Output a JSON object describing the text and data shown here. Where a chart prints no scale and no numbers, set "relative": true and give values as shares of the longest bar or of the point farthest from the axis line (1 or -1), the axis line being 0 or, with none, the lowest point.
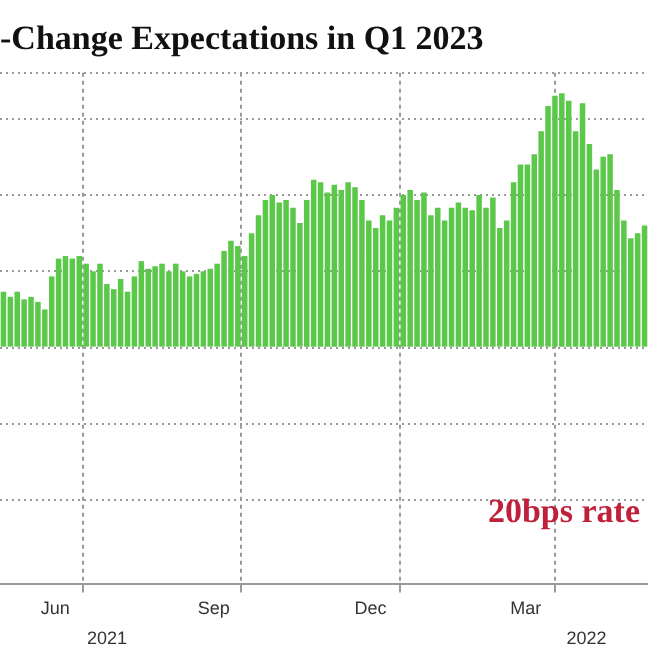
{
  "chart_data": {
    "type": "bar",
    "title": "-Change Expectations in Q1 2023",
    "relative": true,
    "color": "#5cc84a",
    "grid": true,
    "legend": false,
    "x": [
      "2021-05-16",
      "2021-05-20",
      "2021-05-24",
      "2021-05-28",
      "2021-06-01",
      "2021-06-05",
      "2021-06-09",
      "2021-06-13",
      "2021-06-17",
      "2021-06-21",
      "2021-06-25",
      "2021-06-29",
      "2021-07-03",
      "2021-07-07",
      "2021-07-11",
      "2021-07-15",
      "2021-07-19",
      "2021-07-23",
      "2021-07-27",
      "2021-07-31",
      "2021-08-04",
      "2021-08-08",
      "2021-08-12",
      "2021-08-16",
      "2021-08-20",
      "2021-08-24",
      "2021-08-28",
      "2021-09-01",
      "2021-09-05",
      "2021-09-09",
      "2021-09-13",
      "2021-09-17",
      "2021-09-21",
      "2021-09-25",
      "2021-09-29",
      "2021-10-03",
      "2021-10-07",
      "2021-10-11",
      "2021-10-15",
      "2021-10-19",
      "2021-10-23",
      "2021-10-27",
      "2021-10-31",
      "2021-11-04",
      "2021-11-08",
      "2021-11-12",
      "2021-11-16",
      "2021-11-20",
      "2021-11-24",
      "2021-11-28",
      "2021-12-02",
      "2021-12-06",
      "2021-12-10",
      "2021-12-14",
      "2021-12-18",
      "2021-12-22",
      "2021-12-26",
      "2021-12-30",
      "2022-01-03",
      "2022-01-07",
      "2022-01-11",
      "2022-01-15",
      "2022-01-19",
      "2022-01-23",
      "2022-01-27",
      "2022-01-31",
      "2022-02-04",
      "2022-02-08",
      "2022-02-12",
      "2022-02-16",
      "2022-02-20",
      "2022-02-24",
      "2022-02-28",
      "2022-03-04",
      "2022-03-08",
      "2022-03-12",
      "2022-03-16",
      "2022-03-20",
      "2022-03-24",
      "2022-03-28",
      "2022-04-01",
      "2022-04-05",
      "2022-04-09",
      "2022-04-13",
      "2022-04-17",
      "2022-04-21",
      "2022-04-25",
      "2022-04-29",
      "2022-05-03",
      "2022-05-07",
      "2022-05-11",
      "2022-05-15",
      "2022-05-19",
      "2022-05-23"
    ],
    "values": [
      0.22,
      0.2,
      0.22,
      0.19,
      0.2,
      0.18,
      0.15,
      0.28,
      0.35,
      0.36,
      0.35,
      0.36,
      0.33,
      0.3,
      0.33,
      0.25,
      0.23,
      0.27,
      0.22,
      0.28,
      0.34,
      0.31,
      0.32,
      0.33,
      0.3,
      0.33,
      0.3,
      0.28,
      0.29,
      0.3,
      0.31,
      0.33,
      0.38,
      0.42,
      0.4,
      0.36,
      0.45,
      0.52,
      0.58,
      0.6,
      0.57,
      0.58,
      0.55,
      0.49,
      0.58,
      0.66,
      0.65,
      0.61,
      0.64,
      0.62,
      0.65,
      0.63,
      0.58,
      0.5,
      0.47,
      0.52,
      0.5,
      0.55,
      0.6,
      0.62,
      0.58,
      0.61,
      0.52,
      0.55,
      0.5,
      0.55,
      0.57,
      0.55,
      0.54,
      0.6,
      0.55,
      0.59,
      0.47,
      0.5,
      0.65,
      0.72,
      0.72,
      0.76,
      0.85,
      0.95,
      0.99,
      1.0,
      0.97,
      0.85,
      0.96,
      0.8,
      0.7,
      0.75,
      0.76,
      0.62,
      0.5,
      0.43,
      0.45,
      0.48
    ],
    "xlim": [
      "2021-05-14",
      "2022-05-25"
    ],
    "xticks": [
      {
        "value": "2021-06-15",
        "label": "Jun"
      },
      {
        "value": "2021-07-01",
        "label": null
      },
      {
        "value": "2021-09-15",
        "label": "Sep"
      },
      {
        "value": "2021-10-01",
        "label": null
      },
      {
        "value": "2021-12-15",
        "label": "Dec"
      },
      {
        "value": "2022-01-01",
        "label": null
      },
      {
        "value": "2022-03-15",
        "label": "Mar"
      },
      {
        "value": "2022-04-01",
        "label": null
      }
    ],
    "annotations": [
      "20bps rate",
      "2021",
      "2022"
    ]
  }
}
